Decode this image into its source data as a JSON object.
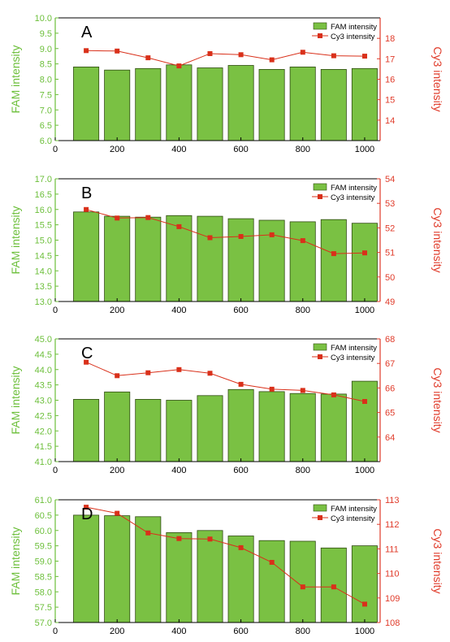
{
  "colors": {
    "bar_fill": "#7ac143",
    "bar_stroke": "#2f4a10",
    "line": "#d9301a",
    "left_axis": "#6cbf3a",
    "right_axis": "#e03b2a",
    "axis": "#000000"
  },
  "chart_data": [
    {
      "type": "bar+line",
      "panel_label": "A",
      "x": [
        100,
        200,
        300,
        400,
        500,
        600,
        700,
        800,
        900,
        1000
      ],
      "xticks": [
        0,
        200,
        400,
        600,
        800,
        1000
      ],
      "xlim": [
        0,
        1050
      ],
      "ylabel": "FAM intensity",
      "ylim": [
        6.0,
        10.0
      ],
      "yticks": [
        "6.0",
        "6.5",
        "7.0",
        "7.5",
        "8.0",
        "8.5",
        "9.0",
        "9.5",
        "10.0"
      ],
      "y2label": "Cy3 intensity",
      "y2lim": [
        13,
        19
      ],
      "y2ticks": [
        "14",
        "15",
        "16",
        "17",
        "18"
      ],
      "series": [
        {
          "name": "FAM intensity",
          "kind": "bar",
          "axis": "left",
          "values": [
            8.4,
            8.3,
            8.35,
            8.47,
            8.37,
            8.45,
            8.32,
            8.4,
            8.32,
            8.35
          ]
        },
        {
          "name": "Cy3 intensity",
          "kind": "line",
          "axis": "right",
          "values": [
            17.4,
            17.38,
            17.05,
            16.65,
            17.25,
            17.2,
            16.95,
            17.32,
            17.15,
            17.13
          ]
        }
      ],
      "legend": "top-right"
    },
    {
      "type": "bar+line",
      "panel_label": "B",
      "x": [
        100,
        200,
        300,
        400,
        500,
        600,
        700,
        800,
        900,
        1000
      ],
      "xticks": [
        0,
        200,
        400,
        600,
        800,
        1000
      ],
      "xlim": [
        0,
        1050
      ],
      "ylabel": "FAM intensity",
      "ylim": [
        13.0,
        17.0
      ],
      "yticks": [
        "13.0",
        "13.5",
        "14.0",
        "14.5",
        "15.0",
        "15.5",
        "16.0",
        "16.5",
        "17.0"
      ],
      "y2label": "Cy3 intensity",
      "y2lim": [
        49,
        54
      ],
      "y2ticks": [
        "49",
        "50",
        "51",
        "52",
        "53",
        "54"
      ],
      "series": [
        {
          "name": "FAM intensity",
          "kind": "bar",
          "axis": "left",
          "values": [
            15.92,
            15.78,
            15.75,
            15.8,
            15.78,
            15.7,
            15.65,
            15.6,
            15.67,
            15.55
          ]
        },
        {
          "name": "Cy3 intensity",
          "kind": "line",
          "axis": "right",
          "values": [
            52.75,
            52.4,
            52.42,
            52.05,
            51.6,
            51.65,
            51.72,
            51.48,
            50.95,
            50.98
          ]
        }
      ],
      "legend": "top-right"
    },
    {
      "type": "bar+line",
      "panel_label": "C",
      "x": [
        100,
        200,
        300,
        400,
        500,
        600,
        700,
        800,
        900,
        1000
      ],
      "xticks": [
        0,
        200,
        400,
        600,
        800,
        1000
      ],
      "xlim": [
        0,
        1050
      ],
      "ylabel": "FAM intensity",
      "ylim": [
        41.0,
        45.0
      ],
      "yticks": [
        "41.0",
        "41.5",
        "42.0",
        "42.5",
        "43.0",
        "43.5",
        "44.0",
        "44.5",
        "45.0"
      ],
      "y2label": "Cy3 intensity",
      "y2lim": [
        63,
        68
      ],
      "y2ticks": [
        "64",
        "65",
        "66",
        "67",
        "68"
      ],
      "series": [
        {
          "name": "FAM intensity",
          "kind": "bar",
          "axis": "left",
          "values": [
            43.03,
            43.27,
            43.03,
            43.0,
            43.15,
            43.35,
            43.28,
            43.22,
            43.2,
            43.62
          ]
        },
        {
          "name": "Cy3 intensity",
          "kind": "line",
          "axis": "right",
          "values": [
            67.05,
            66.5,
            66.62,
            66.75,
            66.6,
            66.15,
            65.95,
            65.9,
            65.72,
            65.45
          ]
        }
      ],
      "legend": "top-right"
    },
    {
      "type": "bar+line",
      "panel_label": "D",
      "x": [
        100,
        200,
        300,
        400,
        500,
        600,
        700,
        800,
        900,
        1000
      ],
      "xticks": [
        0,
        200,
        400,
        600,
        800,
        1000
      ],
      "xlim": [
        0,
        1050
      ],
      "ylabel": "FAM intensity",
      "ylim": [
        57.0,
        61.0
      ],
      "yticks": [
        "57.0",
        "57.5",
        "58.0",
        "58.5",
        "59.0",
        "59.5",
        "60.0",
        "60.5",
        "61.0"
      ],
      "y2label": "Cy3 intensity",
      "y2lim": [
        108,
        113
      ],
      "y2ticks": [
        "108",
        "109",
        "110",
        "111",
        "112",
        "113"
      ],
      "series": [
        {
          "name": "FAM intensity",
          "kind": "bar",
          "axis": "left",
          "values": [
            60.5,
            60.48,
            60.45,
            59.93,
            60.0,
            59.82,
            59.67,
            59.65,
            59.43,
            59.5
          ]
        },
        {
          "name": "Cy3 intensity",
          "kind": "line",
          "axis": "right",
          "values": [
            112.7,
            112.45,
            111.65,
            111.42,
            111.4,
            111.05,
            110.45,
            109.45,
            109.45,
            108.75
          ]
        }
      ],
      "legend": "top-right"
    }
  ]
}
